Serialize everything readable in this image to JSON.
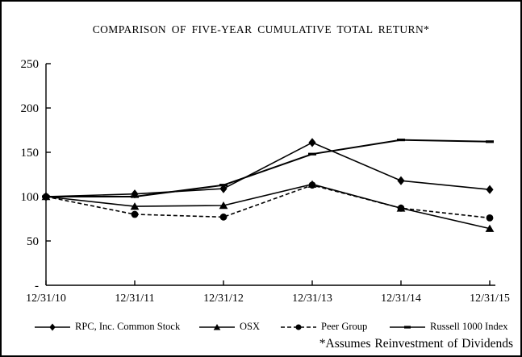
{
  "chart_data": {
    "type": "line",
    "title": "COMPARISON OF FIVE-YEAR CUMULATIVE TOTAL RETURN*",
    "annotation": "*Assumes Reinvestment of Dividends",
    "categories": [
      "12/31/10",
      "12/31/11",
      "12/31/12",
      "12/31/13",
      "12/31/14",
      "12/31/15"
    ],
    "y_axis": {
      "min": 0,
      "max": 250,
      "tick_interval": 50,
      "tick_labels": [
        "-",
        "50",
        "100",
        "150",
        "200",
        "250"
      ]
    },
    "grid": "off",
    "legend_position": "bottom",
    "background_color": "#ffffff",
    "foreground_color": "#000000",
    "series": [
      {
        "name": "RPC, Inc. Common Stock",
        "marker": "diamond",
        "line_style": "solid",
        "color": "#000000",
        "values": [
          100,
          103,
          109,
          161,
          118,
          108
        ]
      },
      {
        "name": "OSX",
        "marker": "triangle",
        "line_style": "solid",
        "color": "#000000",
        "values": [
          100,
          89,
          90,
          114,
          87,
          64
        ]
      },
      {
        "name": "Peer Group",
        "marker": "circle",
        "line_style": "dashed",
        "color": "#000000",
        "values": [
          100,
          80,
          77,
          113,
          87,
          76
        ]
      },
      {
        "name": "Russell 1000 Index",
        "marker": "dash",
        "line_style": "solid",
        "color": "#000000",
        "values": [
          100,
          100,
          113,
          148,
          164,
          162
        ]
      }
    ]
  }
}
